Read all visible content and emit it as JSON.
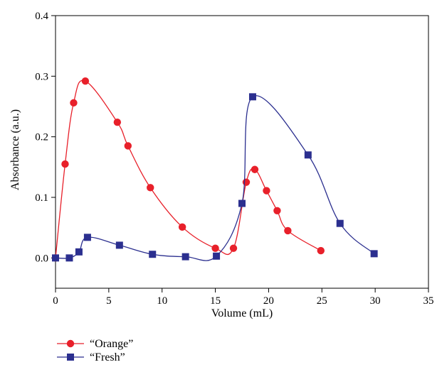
{
  "chart_data": {
    "type": "line",
    "xlabel": "Volume (mL)",
    "ylabel": "Absorbance (a.u.)",
    "xlim": [
      0,
      35
    ],
    "ylim": [
      -0.05,
      0.4
    ],
    "xticks": [
      0,
      5,
      10,
      15,
      20,
      25,
      30,
      35
    ],
    "xtick_labels": [
      "0",
      "5",
      "10",
      "15",
      "20",
      "25",
      "30",
      "35"
    ],
    "yticks": [
      0.0,
      0.1,
      0.2,
      0.3,
      0.4
    ],
    "ytick_labels": [
      "0.0",
      "0.1",
      "0.2",
      "0.3",
      "0.4"
    ],
    "grid": false,
    "legend_position": "bottom-left, below plot",
    "series": [
      {
        "name": "“Orange”",
        "color": "#e8202a",
        "marker": "circle",
        "x": [
          0,
          0.9,
          1.7,
          2.8,
          5.8,
          6.8,
          8.9,
          11.9,
          15.0,
          16.7,
          17.9,
          18.7,
          19.8,
          20.8,
          21.8,
          24.9
        ],
        "y": [
          0.0,
          0.155,
          0.256,
          0.292,
          0.224,
          0.185,
          0.116,
          0.051,
          0.016,
          0.016,
          0.125,
          0.146,
          0.111,
          0.078,
          0.045,
          0.012
        ]
      },
      {
        "name": "“Fresh”",
        "color": "#2b2f8f",
        "marker": "square",
        "x": [
          0,
          1.3,
          2.2,
          3.0,
          6.0,
          9.1,
          12.2,
          15.1,
          17.5,
          18.5,
          23.7,
          26.7,
          29.9
        ],
        "y": [
          0.0,
          0.0,
          0.01,
          0.034,
          0.021,
          0.006,
          0.002,
          0.003,
          0.09,
          0.266,
          0.17,
          0.057,
          0.007
        ]
      }
    ]
  }
}
